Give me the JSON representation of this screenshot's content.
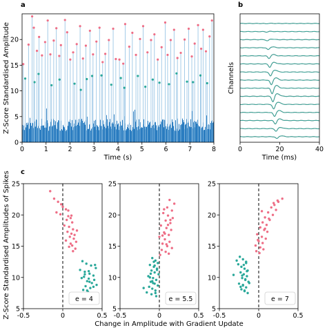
{
  "colors": {
    "bar": "#2a7cc0",
    "pink": "#ee6e86",
    "teal": "#2aa89a",
    "axis": "#000000",
    "trace": "#31a89b"
  },
  "panel_labels": {
    "a": "a",
    "b": "b",
    "c": "c"
  },
  "chart_data": [
    {
      "panel": "a",
      "type": "bar",
      "xlabel": "Time (s)",
      "ylabel": "Z-Score Standardised Amplitude",
      "xlim": [
        0,
        8
      ],
      "ylim": [
        0,
        25
      ],
      "xticks": [
        0,
        1,
        2,
        3,
        4,
        5,
        6,
        7,
        8
      ],
      "yticks": [
        0,
        5,
        10,
        15,
        20
      ],
      "grid": false,
      "series": [
        {
          "marker": "pink",
          "x": [
            0.05,
            0.27,
            0.42,
            0.49,
            0.62,
            0.71,
            0.83,
            0.96,
            1.07,
            1.18,
            1.32,
            1.43,
            1.55,
            1.62,
            1.79,
            1.88,
            2.01,
            2.13,
            2.28,
            2.42,
            2.54,
            2.66,
            2.83,
            2.96,
            3.1,
            3.23,
            3.36,
            3.47,
            3.62,
            3.8,
            3.91,
            4.06,
            4.22,
            4.3,
            4.47,
            4.6,
            4.75,
            4.92,
            5.05,
            5.23,
            5.38,
            5.52,
            5.66,
            5.82,
            5.97,
            6.07,
            6.2,
            6.34,
            6.48,
            6.62,
            6.78,
            6.95,
            7.08,
            7.2,
            7.34,
            7.47,
            7.55,
            7.67,
            7.82,
            7.92
          ],
          "y": [
            15.2,
            19.0,
            24.5,
            22.3,
            17.8,
            20.5,
            16.9,
            19.5,
            23.7,
            17.1,
            19.8,
            22.2,
            16.8,
            18.9,
            23.8,
            21.4,
            16.1,
            17.5,
            19.1,
            22.6,
            16.3,
            18.8,
            21.7,
            17.1,
            19.6,
            22.3,
            15.6,
            17.2,
            19.9,
            22.1,
            16.2,
            16.1,
            15.3,
            23.0,
            18.6,
            21.3,
            17.0,
            20.1,
            22.6,
            17.5,
            19.9,
            21.0,
            16.1,
            18.5,
            23.3,
            17.0,
            19.9,
            21.9,
            16.4,
            17.4,
            20.0,
            22.1,
            16.7,
            19.2,
            22.8,
            18.2,
            21.9,
            17.7,
            20.6,
            23.7
          ]
        },
        {
          "marker": "teal",
          "x": [
            0.13,
            0.52,
            0.69,
            1.23,
            1.56,
            2.19,
            2.45,
            2.7,
            2.92,
            3.31,
            3.72,
            4.12,
            4.27,
            4.83,
            5.14,
            5.45,
            5.73,
            6.13,
            6.44,
            6.88,
            7.13,
            7.44,
            7.72
          ],
          "y": [
            12.4,
            11.7,
            13.3,
            11.1,
            12.2,
            11.4,
            10.2,
            12.3,
            12.9,
            13.0,
            11.2,
            12.5,
            10.6,
            12.9,
            10.8,
            12.2,
            11.6,
            11.3,
            13.4,
            11.8,
            11.7,
            13.0,
            11.5
          ]
        }
      ]
    },
    {
      "panel": "b",
      "type": "line",
      "xlabel": "Time (ms)",
      "ylabel": "Channels",
      "xlim": [
        0,
        40
      ],
      "xticks": [
        0,
        20,
        40
      ],
      "channels": 15
    },
    {
      "panel": "c",
      "type": "scatter",
      "ylabel": "Z-Score Standardised Amplitudes of Spikes",
      "xlabel": "Change in Amplitude with Gradient Update",
      "xlim": [
        -0.5,
        0.5
      ],
      "ylim": [
        5,
        25
      ],
      "xticks": [
        -0.5,
        0.0,
        0.5
      ],
      "yticks": [
        5,
        10,
        15,
        20,
        25
      ],
      "subplots": [
        {
          "annotation": "e = 4",
          "series": [
            {
              "marker": "pink",
              "x": [
                -0.16,
                -0.11,
                -0.06,
                -0.02,
                0.0,
                0.04,
                -0.08,
                -0.03,
                0.07,
                0.1,
                0.05,
                0.12,
                0.02,
                0.08,
                0.13,
                0.06,
                0.11,
                0.15,
                0.09,
                0.14,
                0.04,
                0.17,
                0.1,
                0.12,
                0.08,
                0.16,
                0.13,
                0.07,
                0.18,
                0.11
              ],
              "y": [
                23.8,
                22.6,
                22.1,
                21.7,
                21.3,
                20.9,
                20.4,
                20.1,
                19.8,
                19.5,
                19.2,
                18.8,
                18.3,
                18.1,
                17.7,
                17.3,
                17.0,
                16.8,
                16.5,
                16.2,
                15.9,
                15.7,
                15.4,
                15.1,
                14.9,
                14.6,
                14.2,
                20.7,
                17.5,
                19.9
              ]
            },
            {
              "marker": "teal",
              "x": [
                0.25,
                0.3,
                0.36,
                0.42,
                0.22,
                0.28,
                0.34,
                0.39,
                0.27,
                0.33,
                0.4,
                0.31,
                0.37,
                0.43,
                0.29,
                0.35,
                0.26,
                0.32,
                0.38,
                0.3,
                0.36,
                0.41,
                0.33,
                0.28,
                0.24,
                0.34,
                0.39,
                0.31,
                0.36,
                0.3
              ],
              "y": [
                12.6,
                12.2,
                11.9,
                11.5,
                11.2,
                10.9,
                10.6,
                10.3,
                10.1,
                9.8,
                9.6,
                9.4,
                9.1,
                8.8,
                8.6,
                8.3,
                8.0,
                7.7,
                7.4,
                7.1,
                6.9,
                12.0,
                11.0,
                10.5,
                9.9,
                9.3,
                8.5,
                7.9,
                7.3,
                6.5
              ]
            }
          ]
        },
        {
          "annotation": "e = 5.5",
          "series": [
            {
              "marker": "pink",
              "x": [
                0.13,
                0.19,
                0.1,
                0.16,
                0.05,
                0.11,
                0.17,
                0.08,
                0.14,
                0.02,
                0.09,
                0.15,
                0.06,
                0.12,
                0.0,
                0.07,
                0.13,
                0.04,
                0.1,
                0.16,
                0.03,
                0.08,
                0.12,
                0.01,
                0.06,
                0.11,
                0.04,
                0.09,
                0.14,
                0.07
              ],
              "y": [
                22.4,
                21.8,
                21.2,
                20.7,
                20.3,
                19.9,
                19.5,
                19.1,
                18.7,
                18.3,
                17.9,
                17.6,
                17.2,
                16.8,
                16.5,
                16.1,
                15.7,
                15.4,
                15.0,
                14.7,
                14.4,
                14.1,
                13.8,
                13.6,
                20.9,
                18.4,
                16.7,
                15.3,
                19.2,
                17.0
              ]
            },
            {
              "marker": "teal",
              "x": [
                -0.09,
                -0.05,
                -0.02,
                -0.12,
                -0.07,
                -0.03,
                -0.1,
                -0.06,
                -0.01,
                -0.14,
                -0.08,
                -0.04,
                -0.11,
                -0.06,
                -0.02,
                -0.13,
                -0.09,
                -0.05,
                -0.16,
                -0.1,
                -0.04,
                -0.07,
                -0.03,
                -0.12,
                -0.08,
                -0.2,
                -0.05,
                -0.11,
                -0.06,
                -0.09
              ],
              "y": [
                13.1,
                12.7,
                12.3,
                12.0,
                11.7,
                11.4,
                11.1,
                10.8,
                10.5,
                10.2,
                9.9,
                9.6,
                9.3,
                9.0,
                8.7,
                8.5,
                8.2,
                7.9,
                7.6,
                7.3,
                7.0,
                12.5,
                11.2,
                10.0,
                9.1,
                8.3,
                7.5,
                10.6,
                11.9,
                9.4
              ]
            }
          ]
        },
        {
          "annotation": "e = 7",
          "series": [
            {
              "marker": "pink",
              "x": [
                0.3,
                0.25,
                0.2,
                0.16,
                0.22,
                0.12,
                0.18,
                0.08,
                0.14,
                0.05,
                0.1,
                0.02,
                0.07,
                0.11,
                -0.02,
                0.04,
                0.09,
                0.0,
                0.05,
                -0.04,
                0.02,
                0.06,
                -0.03,
                0.01,
                0.04,
                0.13,
                0.19,
                0.24,
                0.08,
                -0.01
              ],
              "y": [
                22.6,
                22.1,
                21.6,
                21.2,
                20.8,
                20.4,
                20.0,
                19.6,
                19.2,
                18.8,
                18.4,
                18.0,
                17.6,
                17.3,
                16.9,
                16.5,
                16.2,
                15.8,
                15.5,
                15.1,
                14.8,
                14.5,
                14.2,
                13.9,
                20.6,
                19.4,
                21.9,
                22.3,
                17.8,
                16.0
              ]
            },
            {
              "marker": "teal",
              "x": [
                -0.24,
                -0.2,
                -0.16,
                -0.26,
                -0.22,
                -0.18,
                -0.14,
                -0.23,
                -0.19,
                -0.15,
                -0.21,
                -0.17,
                -0.13,
                -0.25,
                -0.2,
                -0.16,
                -0.22,
                -0.18,
                -0.14,
                -0.28,
                -0.19,
                -0.15,
                -0.21,
                -0.17,
                -0.12,
                -0.23,
                -0.18,
                -0.32,
                -0.16,
                -0.2
              ],
              "y": [
                13.3,
                12.9,
                12.5,
                12.1,
                11.7,
                11.4,
                11.1,
                10.8,
                10.5,
                10.2,
                9.9,
                9.6,
                9.3,
                9.0,
                8.7,
                8.4,
                8.1,
                7.8,
                7.5,
                12.7,
                12.0,
                11.0,
                10.3,
                9.7,
                9.1,
                8.5,
                7.9,
                10.4,
                12.3,
                8.8
              ]
            }
          ]
        }
      ]
    }
  ]
}
